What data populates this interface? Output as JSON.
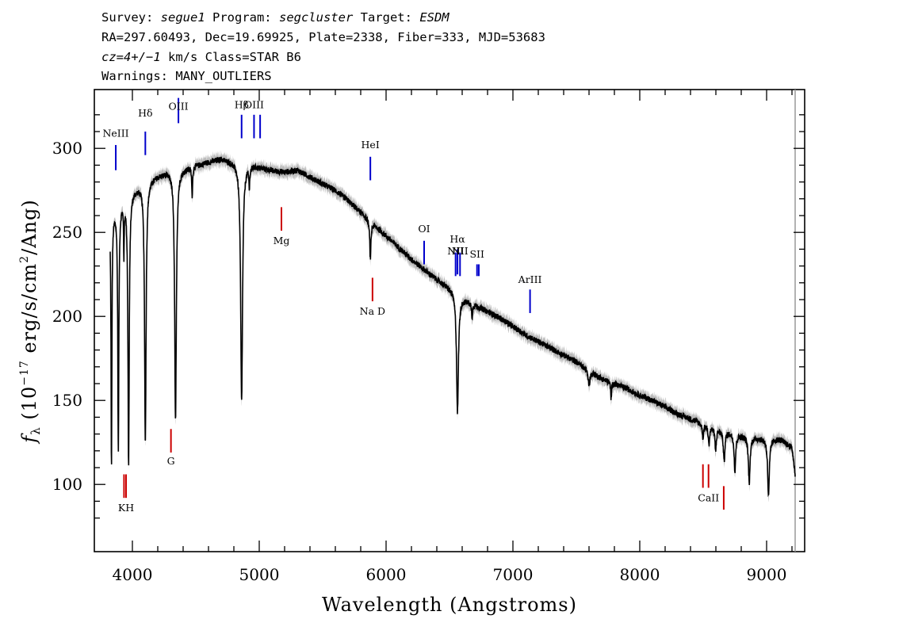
{
  "header": {
    "line1": {
      "survey_label": "Survey: ",
      "survey": "segue1",
      "program_label": " Program: ",
      "program": "segcluster",
      "target_label": " Target: ",
      "target": "ESDM"
    },
    "line2": "RA=297.60493, Dec=19.69925, Plate=2338, Fiber=333, MJD=53683",
    "line3": {
      "cz": "cz=4+/−1",
      "rest": " km/s Class=STAR B6"
    },
    "line4": "Warnings: MANY_OUTLIERS"
  },
  "chart_data": {
    "type": "line",
    "xlabel": "Wavelength (Angstroms)",
    "ylabel_parts": {
      "f": "f",
      "sub": "λ",
      "open": " (10",
      "exp": "−17",
      "mid": " erg/s/cm",
      "exp2": "2",
      "close": "/Ang)"
    },
    "xlim": [
      3700,
      9300
    ],
    "ylim": [
      60,
      335
    ],
    "x_ticks": [
      4000,
      5000,
      6000,
      7000,
      8000,
      9000
    ],
    "y_ticks": [
      100,
      150,
      200,
      250,
      300
    ],
    "x_tick_labels": [
      "4000",
      "5000",
      "6000",
      "7000",
      "8000",
      "9000"
    ],
    "y_tick_labels": [
      "100",
      "150",
      "200",
      "250",
      "300"
    ],
    "continuum": [
      [
        3825,
        260
      ],
      [
        3900,
        268
      ],
      [
        4000,
        275
      ],
      [
        4100,
        280
      ],
      [
        4200,
        284
      ],
      [
        4300,
        287
      ],
      [
        4400,
        288
      ],
      [
        4500,
        290
      ],
      [
        4600,
        292
      ],
      [
        4700,
        294
      ],
      [
        4800,
        292
      ],
      [
        4900,
        291
      ],
      [
        5000,
        289
      ],
      [
        5100,
        287
      ],
      [
        5200,
        286
      ],
      [
        5300,
        287
      ],
      [
        5400,
        283
      ],
      [
        5500,
        279
      ],
      [
        5600,
        275
      ],
      [
        5700,
        269
      ],
      [
        5800,
        262
      ],
      [
        5900,
        255
      ],
      [
        6000,
        248
      ],
      [
        6100,
        241
      ],
      [
        6200,
        234
      ],
      [
        6300,
        228
      ],
      [
        6400,
        222
      ],
      [
        6500,
        217
      ],
      [
        6600,
        211
      ],
      [
        6700,
        207
      ],
      [
        6800,
        203
      ],
      [
        6900,
        199
      ],
      [
        7000,
        194
      ],
      [
        7100,
        189
      ],
      [
        7200,
        185
      ],
      [
        7300,
        181
      ],
      [
        7400,
        177
      ],
      [
        7500,
        173
      ],
      [
        7600,
        168
      ],
      [
        7700,
        163
      ],
      [
        7800,
        160
      ],
      [
        7900,
        157
      ],
      [
        8000,
        153
      ],
      [
        8100,
        150
      ],
      [
        8200,
        146
      ],
      [
        8300,
        142
      ],
      [
        8400,
        139
      ],
      [
        8500,
        136
      ],
      [
        8600,
        133
      ],
      [
        8700,
        131
      ],
      [
        8800,
        129
      ],
      [
        8900,
        128
      ],
      [
        9000,
        127
      ],
      [
        9100,
        127
      ],
      [
        9200,
        122
      ],
      [
        9225,
        106
      ]
    ],
    "absorption_lines": [
      {
        "wave": 3835,
        "depth": 150,
        "width": 4
      },
      {
        "wave": 3889,
        "depth": 145,
        "width": 5
      },
      {
        "wave": 3933,
        "depth": 30,
        "width": 3
      },
      {
        "wave": 3970,
        "depth": 160,
        "width": 6
      },
      {
        "wave": 4102,
        "depth": 155,
        "width": 7
      },
      {
        "wave": 4340,
        "depth": 150,
        "width": 8
      },
      {
        "wave": 4471,
        "depth": 18,
        "width": 4
      },
      {
        "wave": 4861,
        "depth": 142,
        "width": 9
      },
      {
        "wave": 4922,
        "depth": 12,
        "width": 4
      },
      {
        "wave": 5876,
        "depth": 22,
        "width": 6
      },
      {
        "wave": 6563,
        "depth": 70,
        "width": 9
      },
      {
        "wave": 6678,
        "depth": 8,
        "width": 5
      },
      {
        "wave": 7600,
        "depth": 8,
        "width": 10
      },
      {
        "wave": 7774,
        "depth": 10,
        "width": 4
      },
      {
        "wave": 8498,
        "depth": 8,
        "width": 6
      },
      {
        "wave": 8545,
        "depth": 11,
        "width": 6
      },
      {
        "wave": 8598,
        "depth": 13,
        "width": 6
      },
      {
        "wave": 8665,
        "depth": 18,
        "width": 7
      },
      {
        "wave": 8750,
        "depth": 22,
        "width": 7
      },
      {
        "wave": 8863,
        "depth": 27,
        "width": 8
      },
      {
        "wave": 9015,
        "depth": 34,
        "width": 8
      }
    ],
    "emission_markers": [
      {
        "label": "NeIII",
        "wave": 3869,
        "y1": 287,
        "y2": 302,
        "label_y": 307,
        "color": "#0000cc"
      },
      {
        "label": "Hδ",
        "wave": 4102,
        "y1": 296,
        "y2": 310,
        "label_y": 319,
        "color": "#0000cc"
      },
      {
        "label": "OIII",
        "wave": 4363,
        "y1": 315,
        "y2": 330,
        "label_y": 323,
        "color": "#0000cc"
      },
      {
        "label": "Hβ",
        "wave": 4861,
        "y1": 306,
        "y2": 320,
        "label_y": 324,
        "color": "#0000cc"
      },
      {
        "label": "OIII",
        "wave": 4959,
        "y1": 306,
        "y2": 320,
        "label_y": 324,
        "color": "#0000cc"
      },
      {
        "label": "",
        "wave": 5007,
        "y1": 306,
        "y2": 320,
        "label_y": 0,
        "color": "#0000cc"
      },
      {
        "label": "HeI",
        "wave": 5876,
        "y1": 281,
        "y2": 295,
        "label_y": 300,
        "color": "#0000cc"
      },
      {
        "label": "OI",
        "wave": 6300,
        "y1": 231,
        "y2": 245,
        "label_y": 250,
        "color": "#0000cc"
      },
      {
        "label": "Hα",
        "wave": 6563,
        "y1": 225,
        "y2": 240,
        "label_y": 244,
        "color": "#0000cc"
      },
      {
        "label": "NII",
        "wave": 6548,
        "y1": 224,
        "y2": 238,
        "label_y": 237,
        "color": "#0000cc"
      },
      {
        "label": "NII",
        "wave": 6583,
        "y1": 224,
        "y2": 238,
        "label_y": 237,
        "color": "#0000cc"
      },
      {
        "label": "SII",
        "wave": 6717,
        "y1": 224,
        "y2": 231,
        "label_y": 235,
        "color": "#0000cc"
      },
      {
        "label": "",
        "wave": 6731,
        "y1": 224,
        "y2": 231,
        "label_y": 0,
        "color": "#0000cc"
      },
      {
        "label": "ArIII",
        "wave": 7135,
        "y1": 202,
        "y2": 216,
        "label_y": 220,
        "color": "#0000cc"
      }
    ],
    "absorption_markers": [
      {
        "label": "Mg",
        "wave": 5175,
        "y1": 251,
        "y2": 265,
        "label_y": 243,
        "color": "#cc0000"
      },
      {
        "label": "Na D",
        "wave": 5893,
        "y1": 209,
        "y2": 223,
        "label_y": 201,
        "color": "#cc0000"
      },
      {
        "label": "G",
        "wave": 4304,
        "y1": 119,
        "y2": 133,
        "label_y": 112,
        "color": "#cc0000"
      },
      {
        "label": "KH",
        "wave": 3950,
        "y1": 92,
        "y2": 106,
        "label_y": 84,
        "color": "#cc0000"
      },
      {
        "label": "",
        "wave": 3934,
        "y1": 92,
        "y2": 106,
        "label_y": 0,
        "color": "#cc0000"
      },
      {
        "label": "CaII",
        "wave": 8542,
        "y1": 98,
        "y2": 112,
        "label_y": 90,
        "color": "#cc0000"
      },
      {
        "label": "",
        "wave": 8498,
        "y1": 98,
        "y2": 112,
        "label_y": 0,
        "color": "#cc0000"
      },
      {
        "label": "",
        "wave": 8662,
        "y1": 85,
        "y2": 99,
        "label_y": 0,
        "color": "#cc0000"
      }
    ],
    "colors": {
      "flux": "#000000",
      "error": "#b8b8b8",
      "emission": "#0000cc",
      "absorption": "#cc0000",
      "axis": "#000000"
    }
  }
}
